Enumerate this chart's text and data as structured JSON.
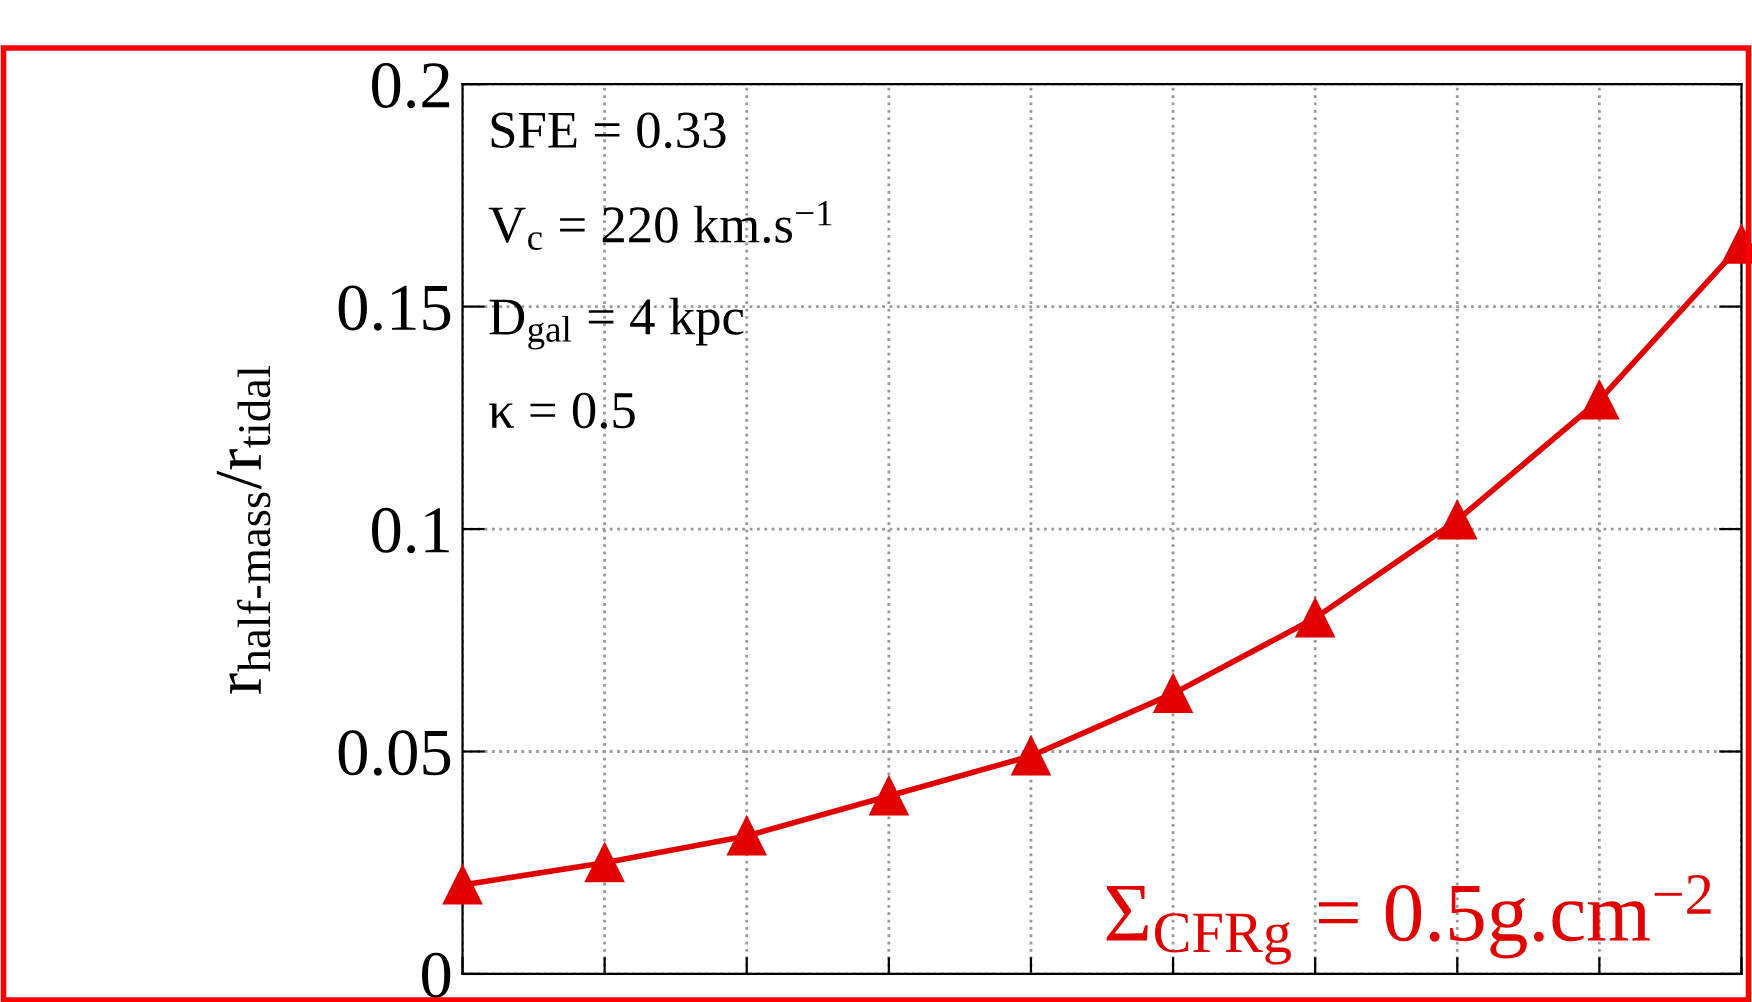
{
  "chart_data": {
    "type": "line",
    "ylabel": "r$_{half-mass}$/r$_{tidal}$",
    "categories": [
      null,
      null,
      null,
      null,
      null,
      null,
      null,
      null,
      null,
      null
    ],
    "series": [
      {
        "name": "Σ$_{CFRg}$ = 0.5g.cm$^{−2}$",
        "color": "#e00000",
        "values": [
          0.02,
          0.025,
          0.031,
          0.04,
          0.049,
          0.063,
          0.08,
          0.102,
          0.129,
          0.164
        ]
      }
    ],
    "ylim": [
      0,
      0.2
    ],
    "yticks": [
      0,
      0.05,
      0.1,
      0.15,
      0.2
    ],
    "annotations": [
      "SFE = 0.33",
      "V$_{c}$ = 220 km.s$^{−1}$",
      "D$_{gal}$ = 4 kpc",
      "κ = 0.5"
    ],
    "grid": true,
    "marker": "triangle",
    "line_style": "solid",
    "tick_labels": "y"
  }
}
